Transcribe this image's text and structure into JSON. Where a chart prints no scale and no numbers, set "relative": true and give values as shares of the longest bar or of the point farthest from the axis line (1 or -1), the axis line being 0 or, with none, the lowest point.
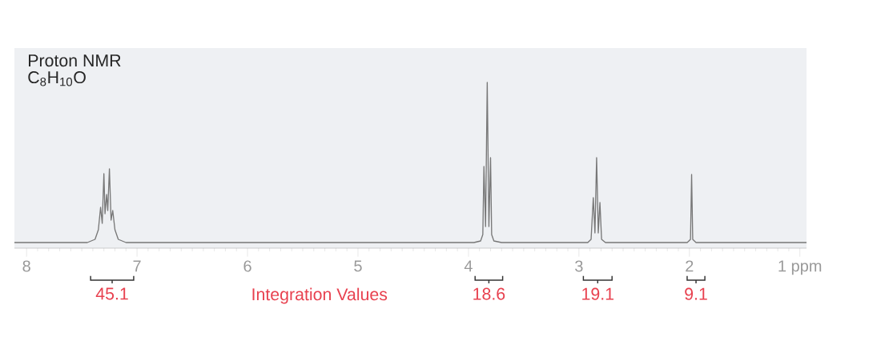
{
  "chart_data": {
    "type": "line",
    "title": "Proton NMR",
    "subtitle": "C$_{8}$H$_{10}$O",
    "relative": true,
    "color": "#777777",
    "xlim": [
      8.11,
      0.94
    ],
    "xticks": [
      8,
      7,
      6,
      5,
      4,
      3,
      2,
      {
        "value": 1,
        "label": "1 ppm"
      }
    ],
    "x": [
      8.11,
      7.45,
      7.38,
      7.35,
      7.33,
      7.315,
      7.3,
      7.29,
      7.275,
      7.265,
      7.25,
      7.235,
      7.22,
      7.2,
      7.17,
      7.1,
      3.95,
      3.89,
      3.87,
      3.86,
      3.845,
      3.83,
      3.815,
      3.8,
      3.79,
      3.77,
      3.7,
      2.92,
      2.89,
      2.87,
      2.855,
      2.84,
      2.825,
      2.81,
      2.795,
      2.76,
      2.02,
      1.99,
      1.98,
      1.97,
      1.94,
      0.94
    ],
    "values": [
      0,
      0,
      0.02,
      0.08,
      0.22,
      0.12,
      0.43,
      0.18,
      0.3,
      0.2,
      0.46,
      0.14,
      0.2,
      0.08,
      0.02,
      0,
      0,
      0.01,
      0.05,
      0.475,
      0.1,
      1.0,
      0.1,
      0.53,
      0.05,
      0.01,
      0,
      0,
      0.02,
      0.28,
      0.06,
      0.53,
      0.06,
      0.25,
      0.02,
      0,
      0,
      0.02,
      0.425,
      0.02,
      0,
      0
    ],
    "annotations": [
      "45.1",
      "Integration Values",
      "18.6",
      "19.1",
      "9.1"
    ],
    "grid": false
  }
}
